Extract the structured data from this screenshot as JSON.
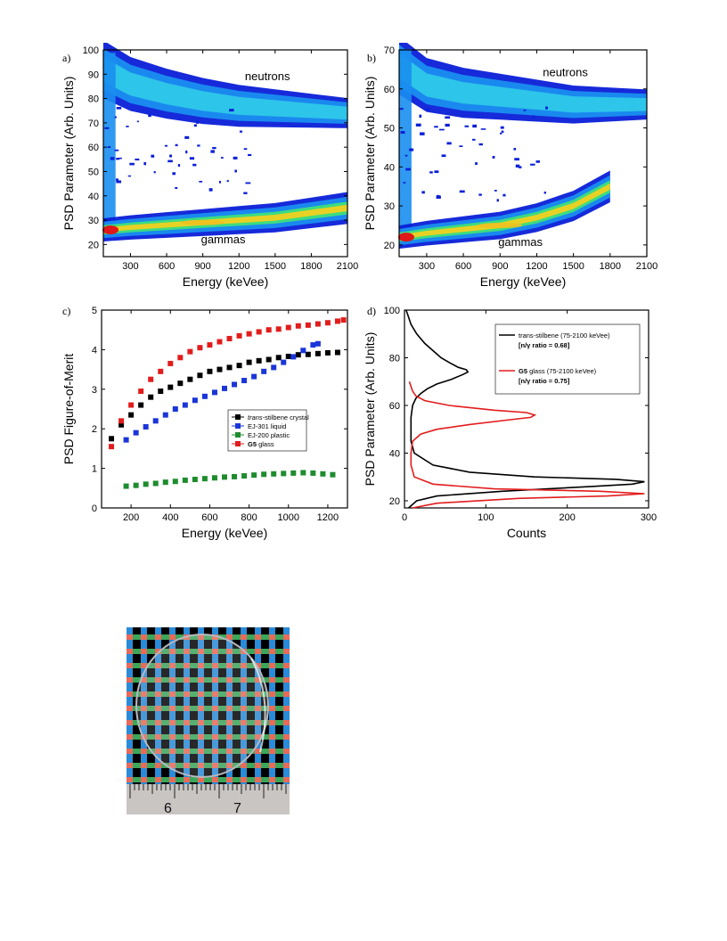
{
  "figure": {
    "panel_a": {
      "letter": "a)",
      "chart_data": {
        "type": "heatmap",
        "xlabel": "Energy (keVee)",
        "ylabel": "PSD Parameter (Arb. Units)",
        "xlim": [
          75,
          2100
        ],
        "ylim": [
          15,
          100
        ],
        "xticks": [
          300,
          600,
          900,
          1200,
          1500,
          1800,
          2100
        ],
        "yticks": [
          20,
          30,
          40,
          50,
          60,
          70,
          80,
          90,
          100
        ],
        "annotations": [
          "neutrons",
          "gammas"
        ],
        "bands": [
          {
            "name": "neutrons",
            "x": [
              75,
              300,
              600,
              900,
              1200,
              1500,
              1800,
              2100
            ],
            "y": [
              92,
              86,
              82,
              79,
              77,
              76,
              75,
              74
            ]
          },
          {
            "name": "gammas",
            "x": [
              75,
              300,
              600,
              900,
              1200,
              1500,
              1800,
              2100
            ],
            "y": [
              26,
              27,
              28,
              29,
              30,
              31,
              33,
              35
            ]
          }
        ]
      }
    },
    "panel_b": {
      "letter": "b)",
      "chart_data": {
        "type": "heatmap",
        "xlabel": "Energy (keVee)",
        "ylabel": "PSD Parameter (Arb. Units)",
        "xlim": [
          75,
          2100
        ],
        "ylim": [
          17,
          70
        ],
        "xticks": [
          300,
          600,
          900,
          1200,
          1500,
          1800,
          2100
        ],
        "yticks": [
          20,
          30,
          40,
          50,
          60,
          70
        ],
        "annotations": [
          "neutrons",
          "gammas"
        ],
        "bands": [
          {
            "name": "neutrons",
            "x": [
              75,
              300,
              600,
              900,
              1200,
              1500,
              1800,
              2100
            ],
            "y": [
              66,
              61,
              59,
              58,
              57,
              56,
              56,
              56
            ]
          },
          {
            "name": "gammas",
            "x": [
              75,
              300,
              600,
              900,
              1200,
              1500,
              1800
            ],
            "y": [
              22,
              23,
              24,
              25,
              27,
              30,
              35
            ]
          }
        ]
      }
    },
    "panel_c": {
      "letter": "c)",
      "chart_data": {
        "type": "scatter",
        "xlabel": "Energy (keVee)",
        "ylabel": "PSD Figure-of-Merit",
        "xlim": [
          50,
          1300
        ],
        "ylim": [
          0,
          5
        ],
        "xticks": [
          200,
          400,
          600,
          800,
          1000,
          1200
        ],
        "yticks": [
          0,
          1,
          2,
          3,
          4,
          5
        ],
        "legend": "right-middle",
        "series": [
          {
            "name_italic": "trans",
            "name": "-stilbene crystal",
            "color": "#000000",
            "x": [
              100,
              150,
              200,
              250,
              300,
              350,
              400,
              450,
              500,
              550,
              600,
              650,
              700,
              750,
              800,
              850,
              900,
              950,
              1000,
              1050,
              1100,
              1150,
              1200,
              1250
            ],
            "y": [
              1.75,
              2.1,
              2.35,
              2.6,
              2.8,
              2.95,
              3.05,
              3.15,
              3.25,
              3.35,
              3.45,
              3.5,
              3.55,
              3.6,
              3.68,
              3.72,
              3.75,
              3.8,
              3.83,
              3.87,
              3.88,
              3.9,
              3.92,
              3.93
            ]
          },
          {
            "name_bold": "",
            "name": "EJ-301 liquid",
            "color": "#1a35d8",
            "x": [
              175,
              225,
              275,
              325,
              375,
              425,
              475,
              525,
              575,
              625,
              675,
              725,
              775,
              825,
              875,
              925,
              975,
              1025,
              1075,
              1125,
              1150
            ],
            "y": [
              1.72,
              1.9,
              2.05,
              2.2,
              2.35,
              2.5,
              2.6,
              2.72,
              2.82,
              2.92,
              3.02,
              3.12,
              3.22,
              3.32,
              3.45,
              3.55,
              3.68,
              3.82,
              3.98,
              4.12,
              4.15
            ]
          },
          {
            "name_bold": "",
            "name": "EJ-200 plastic",
            "color": "#1e8c2e",
            "x": [
              175,
              225,
              275,
              325,
              375,
              425,
              475,
              525,
              575,
              625,
              675,
              725,
              775,
              825,
              875,
              925,
              975,
              1025,
              1075,
              1125,
              1175,
              1225
            ],
            "y": [
              0.55,
              0.57,
              0.6,
              0.62,
              0.65,
              0.67,
              0.7,
              0.72,
              0.74,
              0.76,
              0.78,
              0.79,
              0.81,
              0.83,
              0.85,
              0.86,
              0.87,
              0.88,
              0.89,
              0.88,
              0.86,
              0.84
            ]
          },
          {
            "name_bold": "G5",
            "name": " glass",
            "color": "#e21c1c",
            "x": [
              100,
              150,
              200,
              250,
              300,
              350,
              400,
              450,
              500,
              550,
              600,
              650,
              700,
              750,
              800,
              850,
              900,
              950,
              1000,
              1050,
              1100,
              1150,
              1200,
              1250,
              1280
            ],
            "y": [
              1.55,
              2.2,
              2.6,
              2.95,
              3.25,
              3.45,
              3.65,
              3.8,
              3.95,
              4.05,
              4.12,
              4.2,
              4.28,
              4.35,
              4.4,
              4.45,
              4.5,
              4.52,
              4.56,
              4.6,
              4.62,
              4.65,
              4.68,
              4.72,
              4.75
            ]
          }
        ]
      }
    },
    "panel_d": {
      "letter": "d)",
      "chart_data": {
        "type": "line",
        "xlabel": "Counts",
        "ylabel": "PSD Parameter (Arb. Units)",
        "xlim": [
          0,
          300
        ],
        "ylim": [
          17,
          100
        ],
        "xticks": [
          0,
          100,
          200,
          300
        ],
        "yticks": [
          20,
          40,
          60,
          80,
          100
        ],
        "legend": "top-right",
        "series": [
          {
            "name": "trans-stilbene",
            "range": " (75-2100 keVee)",
            "ratio_label": "[n/γ ratio = 0.68]",
            "color": "#000000",
            "y": [
              17,
              20,
              22,
              24,
              26,
              27,
              28,
              29,
              30,
              32,
              35,
              40,
              45,
              50,
              55,
              60,
              63,
              65,
              67,
              69,
              71,
              73,
              74,
              75,
              76,
              78,
              80,
              83,
              86,
              90,
              94,
              98,
              100
            ],
            "x": [
              5,
              15,
              40,
              120,
              230,
              280,
              295,
              260,
              160,
              80,
              35,
              12,
              8,
              8,
              8,
              10,
              14,
              20,
              28,
              40,
              58,
              72,
              78,
              76,
              66,
              55,
              45,
              35,
              25,
              15,
              8,
              4,
              2
            ]
          },
          {
            "name": "G5",
            "name_suffix": " glass",
            "range": " (75-2100 keVee)",
            "ratio_label": "[n/γ ratio = 0.75]",
            "color": "#e21c1c",
            "y": [
              17,
              19,
              21,
              22,
              23,
              24,
              25,
              27,
              30,
              35,
              40,
              45,
              48,
              50,
              52,
              54,
              55,
              56,
              57,
              58,
              60,
              62,
              64,
              66,
              68,
              70
            ],
            "x": [
              10,
              40,
              140,
              250,
              295,
              240,
              110,
              35,
              12,
              8,
              8,
              10,
              20,
              40,
              80,
              130,
              155,
              160,
              150,
              110,
              55,
              25,
              14,
              10,
              8,
              6
            ]
          }
        ]
      }
    },
    "photo": {
      "ruler_labels": [
        "6",
        "7"
      ]
    }
  }
}
